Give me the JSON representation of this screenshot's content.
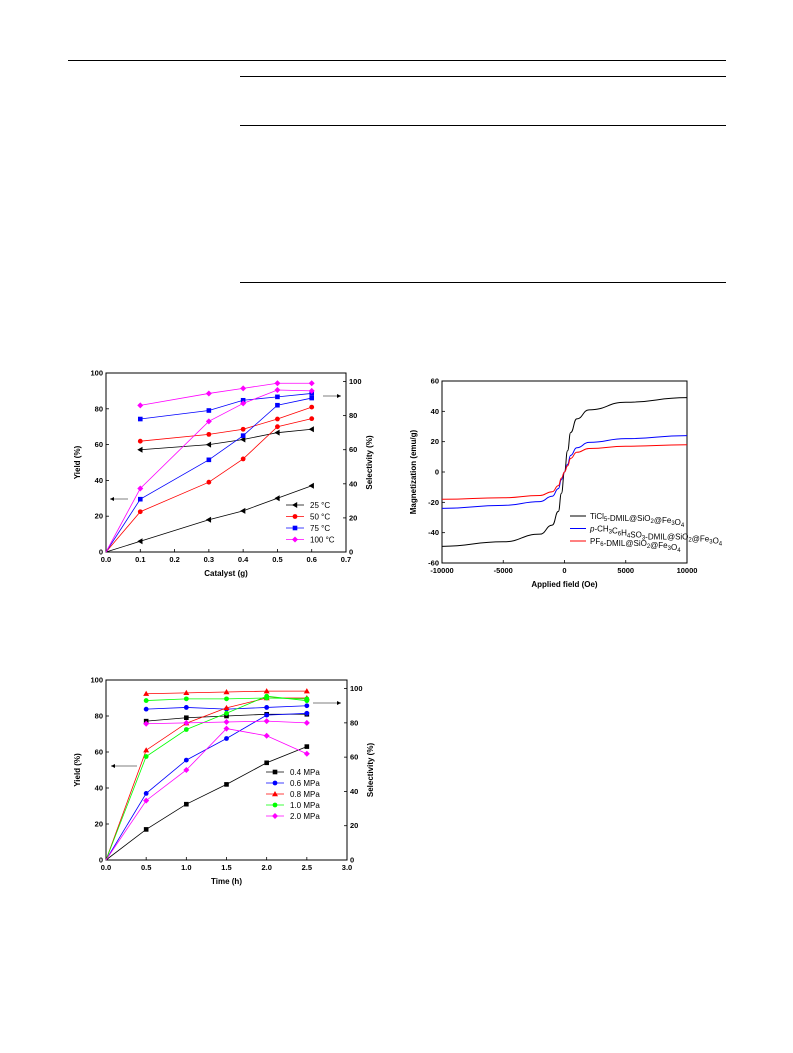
{
  "chart_data": [
    {
      "type": "line",
      "xlabel": "Catalyst  (g)",
      "ylabel": "Yield (%)",
      "y2label": "Selectivity (%)",
      "xlim": [
        0.0,
        0.7
      ],
      "ylim": [
        0,
        100
      ],
      "y2lim": [
        0,
        105
      ],
      "xticks": [
        "0.0",
        "0.1",
        "0.2",
        "0.3",
        "0.4",
        "0.5",
        "0.6",
        "0.7"
      ],
      "yticks": [
        "0",
        "20",
        "40",
        "60",
        "80",
        "100"
      ],
      "y2ticks": [
        "0",
        "20",
        "40",
        "60",
        "80",
        "100"
      ],
      "legend_position": "bottom-right",
      "series": [
        {
          "name": "25 °C",
          "color": "#000000",
          "marker": "triangle-left",
          "yield_x": [
            0,
            0.1,
            0.3,
            0.4,
            0.5,
            0.6
          ],
          "yield": [
            0,
            6,
            18,
            23,
            30,
            37
          ],
          "sel_x": [
            0.1,
            0.3,
            0.4,
            0.5,
            0.6
          ],
          "selectivity": [
            60,
            63,
            66,
            70,
            72
          ]
        },
        {
          "name": "50 °C",
          "color": "#ff0000",
          "marker": "circle",
          "yield_x": [
            0,
            0.1,
            0.3,
            0.4,
            0.5,
            0.6
          ],
          "yield": [
            0,
            22.5,
            39,
            52,
            70,
            74.5
          ],
          "sel_x": [
            0.1,
            0.3,
            0.4,
            0.5,
            0.6
          ],
          "selectivity": [
            65,
            69,
            72,
            78,
            85
          ]
        },
        {
          "name": "75 °C",
          "color": "#0000ff",
          "marker": "square",
          "yield_x": [
            0,
            0.1,
            0.3,
            0.4,
            0.5,
            0.6
          ],
          "yield": [
            0,
            29.5,
            51.5,
            65,
            82,
            86
          ],
          "sel_x": [
            0.1,
            0.3,
            0.4,
            0.5,
            0.6
          ],
          "selectivity": [
            78,
            83,
            89,
            91,
            93
          ]
        },
        {
          "name": "100 °C",
          "color": "#ff00ff",
          "marker": "diamond",
          "yield_x": [
            0,
            0.1,
            0.3,
            0.4,
            0.5,
            0.6
          ],
          "yield": [
            0,
            35.5,
            73,
            83,
            90.5,
            90
          ],
          "sel_x": [
            0.1,
            0.3,
            0.4,
            0.5,
            0.6
          ],
          "selectivity": [
            86,
            93,
            96,
            99,
            99
          ]
        }
      ]
    },
    {
      "type": "line",
      "xlabel": "Applied field (Oe)",
      "ylabel": "Magnetization (emu/g)",
      "xlim": [
        -10000,
        10000
      ],
      "ylim": [
        -60,
        60
      ],
      "xticks": [
        "-10000",
        "-5000",
        "0",
        "5000",
        "10000"
      ],
      "yticks": [
        "-60",
        "-40",
        "-20",
        "0",
        "20",
        "40",
        "60"
      ],
      "legend_position": "bottom-right",
      "series": [
        {
          "name_parts": [
            [
              "TiCl",
              ""
            ],
            [
              "5",
              "sub"
            ],
            [
              "-DMIL@SiO",
              ""
            ],
            [
              "2",
              "sub"
            ],
            [
              "@Fe",
              ""
            ],
            [
              "3",
              "sub"
            ],
            [
              "O",
              ""
            ],
            [
              "4",
              "sub"
            ]
          ],
          "color": "#000000",
          "x": [
            -10000,
            -5000,
            -2000,
            -1000,
            -500,
            -250,
            0,
            250,
            500,
            1000,
            2000,
            5000,
            10000
          ],
          "y": [
            -49,
            -46,
            -41,
            -35,
            -26,
            -14,
            0,
            14,
            26,
            35,
            41,
            46,
            49
          ]
        },
        {
          "name_parts": [
            [
              "p",
              "it"
            ],
            [
              "-CH",
              ""
            ],
            [
              "3",
              "sub"
            ],
            [
              "C",
              ""
            ],
            [
              "6",
              "sub"
            ],
            [
              "H",
              ""
            ],
            [
              "4",
              "sub"
            ],
            [
              "SO",
              ""
            ],
            [
              "3",
              "sub"
            ],
            [
              "-DMIL@SiO",
              ""
            ],
            [
              "2",
              "sub"
            ],
            [
              "@Fe",
              ""
            ],
            [
              "3",
              "sub"
            ],
            [
              "O",
              ""
            ],
            [
              "4",
              "sub"
            ]
          ],
          "color": "#0000ff",
          "x": [
            -10000,
            -5000,
            -2000,
            -1000,
            -500,
            -250,
            0,
            250,
            500,
            1000,
            2000,
            5000,
            10000
          ],
          "y": [
            -24,
            -22,
            -19.5,
            -16,
            -11,
            -5,
            0,
            5,
            11,
            16,
            19.5,
            22,
            24
          ]
        },
        {
          "name_parts": [
            [
              "PF",
              ""
            ],
            [
              "6",
              "sub"
            ],
            [
              "-DMIL@SiO",
              ""
            ],
            [
              "2",
              "sub"
            ],
            [
              "@Fe",
              ""
            ],
            [
              "3",
              "sub"
            ],
            [
              "O",
              ""
            ],
            [
              "4",
              "sub"
            ]
          ],
          "color": "#ff0000",
          "x": [
            -10000,
            -5000,
            -2000,
            -1000,
            -500,
            -250,
            0,
            250,
            500,
            1000,
            2000,
            5000,
            10000
          ],
          "y": [
            -18,
            -17,
            -15.5,
            -13,
            -9,
            -4,
            0,
            4,
            9,
            13,
            15.5,
            17,
            18
          ]
        }
      ]
    },
    {
      "type": "line",
      "xlabel": "Time (h)",
      "ylabel": "Yield (%)",
      "y2label": "Selectivity (%)",
      "xlim": [
        0.0,
        3.0
      ],
      "ylim": [
        0,
        100
      ],
      "y2lim": [
        0,
        105
      ],
      "xticks": [
        "0.0",
        "0.5",
        "1.0",
        "1.5",
        "2.0",
        "2.5",
        "3.0"
      ],
      "yticks": [
        "0",
        "20",
        "40",
        "60",
        "80",
        "100"
      ],
      "y2ticks": [
        "0",
        "20",
        "40",
        "60",
        "80",
        "100"
      ],
      "legend_position": "bottom-right",
      "series": [
        {
          "name": "0.4 MPa",
          "color": "#000000",
          "marker": "square",
          "yield_x": [
            0,
            0.5,
            1.0,
            1.5,
            2.0,
            2.5
          ],
          "yield": [
            0,
            17,
            31,
            42,
            54,
            63
          ],
          "sel_x": [
            0.5,
            1.0,
            1.5,
            2.0,
            2.5
          ],
          "selectivity": [
            81,
            83,
            84,
            85,
            85
          ]
        },
        {
          "name": "0.6 MPa",
          "color": "#0000ff",
          "marker": "circle",
          "yield_x": [
            0,
            0.5,
            1.0,
            1.5,
            2.0,
            2.5
          ],
          "yield": [
            0,
            37,
            55.5,
            67.5,
            80.5,
            81.5
          ],
          "sel_x": [
            0.5,
            1.0,
            1.5,
            2.0,
            2.5
          ],
          "selectivity": [
            88,
            89,
            88,
            89,
            90
          ]
        },
        {
          "name": "0.8 MPa",
          "color": "#ff0000",
          "marker": "triangle-up",
          "yield_x": [
            0,
            0.5,
            1.0,
            1.5,
            2.0,
            2.5
          ],
          "yield": [
            0,
            61,
            76,
            84.5,
            90,
            90
          ],
          "sel_x": [
            0.5,
            1.0,
            1.5,
            2.0,
            2.5
          ],
          "selectivity": [
            97,
            97.5,
            98,
            98.5,
            98.5
          ]
        },
        {
          "name": "1.0 MPa",
          "color": "#00ff00",
          "marker": "circle",
          "yield_x": [
            0,
            0.5,
            1.0,
            1.5,
            2.0,
            2.5
          ],
          "yield": [
            0,
            57.5,
            72.5,
            81.5,
            91,
            88.5
          ],
          "sel_x": [
            0.5,
            1.0,
            1.5,
            2.0,
            2.5
          ],
          "selectivity": [
            93,
            94,
            94,
            94.5,
            94
          ]
        },
        {
          "name": "2.0 MPa",
          "color": "#ff00ff",
          "marker": "diamond",
          "yield_x": [
            0,
            0.5,
            1.0,
            1.5,
            2.0,
            2.5
          ],
          "yield": [
            0,
            33,
            50,
            73,
            69,
            59
          ],
          "sel_x": [
            0.5,
            1.0,
            1.5,
            2.0,
            2.5
          ],
          "selectivity": [
            79.5,
            80,
            80.5,
            81,
            80
          ]
        }
      ]
    }
  ]
}
